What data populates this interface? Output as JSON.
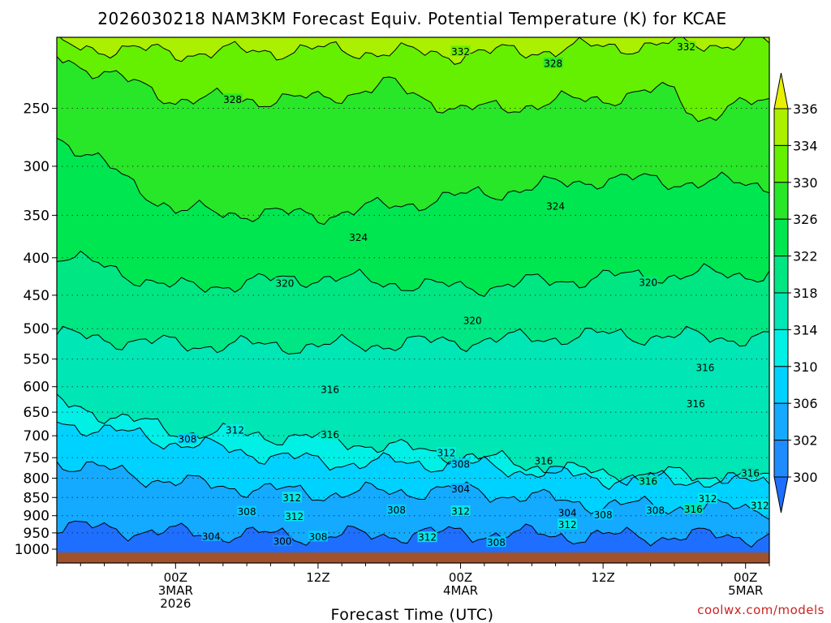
{
  "chart_data": {
    "type": "heatmap",
    "title": "2026030218 NAM3KM Forecast Equiv. Potential Temperature (K) for KCAE",
    "xlabel": "Forecast Time (UTC)",
    "ylabel": "",
    "credit": "coolwx.com/models",
    "x_range_hours_from_00Z_3MAR": [
      -5,
      25
    ],
    "x_ticks": [
      {
        "hour": 0,
        "lines": [
          "00Z",
          "3MAR",
          "2026"
        ]
      },
      {
        "hour": 6,
        "lines": [
          "12Z"
        ]
      },
      {
        "hour": 12,
        "lines": [
          "00Z",
          "4MAR"
        ]
      },
      {
        "hour": 18,
        "lines": [
          "12Z"
        ]
      },
      {
        "hour": 24,
        "lines": [
          "00Z",
          "5MAR"
        ]
      }
    ],
    "y_axis": {
      "scale": "log",
      "units": "hPa",
      "range": [
        1000,
        200
      ],
      "inverted": true
    },
    "y_ticks": [
      250,
      300,
      350,
      400,
      450,
      500,
      550,
      600,
      650,
      700,
      750,
      800,
      850,
      900,
      950,
      1000
    ],
    "colorbar": {
      "ticks": [
        300,
        302,
        306,
        310,
        314,
        318,
        322,
        326,
        330,
        334,
        336
      ],
      "bins": [
        {
          "min": 298,
          "max": 300,
          "color": "#1e6fff"
        },
        {
          "min": 300,
          "max": 302,
          "color": "#1e8cff"
        },
        {
          "min": 302,
          "max": 306,
          "color": "#14aaff"
        },
        {
          "min": 306,
          "max": 310,
          "color": "#00d2ff"
        },
        {
          "min": 310,
          "max": 314,
          "color": "#00f0e6"
        },
        {
          "min": 314,
          "max": 318,
          "color": "#00e6b4"
        },
        {
          "min": 318,
          "max": 322,
          "color": "#00e682"
        },
        {
          "min": 322,
          "max": 326,
          "color": "#00e650"
        },
        {
          "min": 326,
          "max": 330,
          "color": "#28e628"
        },
        {
          "min": 330,
          "max": 334,
          "color": "#64f000"
        },
        {
          "min": 334,
          "max": 336,
          "color": "#aaf000"
        },
        {
          "min": 336,
          "max": 338,
          "color": "#e6f000"
        }
      ]
    },
    "contour_interval_K": 4,
    "contours": [
      {
        "value": 332,
        "levels": [
          [
            -5,
            205
          ],
          [
            0,
            210
          ],
          [
            6,
            208
          ],
          [
            12,
            211
          ],
          [
            18,
            206
          ],
          [
            25,
            203
          ]
        ]
      },
      {
        "value": 328,
        "levels": [
          [
            -5,
            212
          ],
          [
            0,
            243
          ],
          [
            6,
            243
          ],
          [
            9,
            232
          ],
          [
            12,
            252
          ],
          [
            18,
            242
          ],
          [
            21,
            236
          ],
          [
            22,
            258
          ],
          [
            25,
            243
          ]
        ]
      },
      {
        "value": 324,
        "levels": [
          [
            -5,
            272
          ],
          [
            0,
            345
          ],
          [
            6,
            350
          ],
          [
            12,
            330
          ],
          [
            18,
            312
          ],
          [
            25,
            318
          ]
        ]
      },
      {
        "value": 320,
        "levels": [
          [
            -5,
            395
          ],
          [
            0,
            440
          ],
          [
            6,
            425
          ],
          [
            12,
            440
          ],
          [
            18,
            425
          ],
          [
            25,
            420
          ]
        ]
      },
      {
        "value": 316,
        "levels": [
          [
            -5,
            510
          ],
          [
            0,
            525
          ],
          [
            6,
            528
          ],
          [
            12,
            520
          ],
          [
            18,
            510
          ],
          [
            25,
            515
          ]
        ]
      },
      {
        "value": 312,
        "levels": [
          [
            -5,
            630
          ],
          [
            0,
            690
          ],
          [
            6,
            705
          ],
          [
            12,
            745
          ],
          [
            18,
            790
          ],
          [
            25,
            795
          ]
        ]
      },
      {
        "value": 308,
        "levels": [
          [
            -5,
            670
          ],
          [
            0,
            715
          ],
          [
            6,
            760
          ],
          [
            12,
            765
          ],
          [
            18,
            800
          ],
          [
            25,
            810
          ]
        ]
      },
      {
        "value": 304,
        "levels": [
          [
            -5,
            760
          ],
          [
            0,
            810
          ],
          [
            6,
            840
          ],
          [
            12,
            830
          ],
          [
            18,
            870
          ],
          [
            25,
            880
          ]
        ]
      },
      {
        "value": 300,
        "levels": [
          [
            -5,
            930
          ],
          [
            0,
            950
          ],
          [
            6,
            960
          ],
          [
            12,
            950
          ],
          [
            18,
            960
          ],
          [
            25,
            960
          ]
        ]
      }
    ],
    "contour_labels": [
      {
        "value": 332,
        "hour": 12.0,
        "level": 209
      },
      {
        "value": 332,
        "hour": 21.5,
        "level": 206
      },
      {
        "value": 328,
        "hour": 15.9,
        "level": 217
      },
      {
        "value": 328,
        "hour": 2.4,
        "level": 243
      },
      {
        "value": 324,
        "hour": 7.7,
        "level": 375
      },
      {
        "value": 324,
        "hour": 16.0,
        "level": 340
      },
      {
        "value": 320,
        "hour": 4.6,
        "level": 433
      },
      {
        "value": 320,
        "hour": 19.9,
        "level": 432
      },
      {
        "value": 320,
        "hour": 12.5,
        "level": 487
      },
      {
        "value": 316,
        "hour": 6.5,
        "level": 605
      },
      {
        "value": 316,
        "hour": 22.3,
        "level": 565
      },
      {
        "value": 316,
        "hour": 21.9,
        "level": 633
      },
      {
        "value": 316,
        "hour": 6.5,
        "level": 697
      },
      {
        "value": 316,
        "hour": 15.5,
        "level": 757
      },
      {
        "value": 316,
        "hour": 19.9,
        "level": 807
      },
      {
        "value": 316,
        "hour": 24.2,
        "level": 787
      },
      {
        "value": 316,
        "hour": 21.8,
        "level": 881
      },
      {
        "value": 312,
        "hour": 2.5,
        "level": 687
      },
      {
        "value": 312,
        "hour": 11.4,
        "level": 738
      },
      {
        "value": 312,
        "hour": 4.9,
        "level": 850
      },
      {
        "value": 312,
        "hour": 5.0,
        "level": 902
      },
      {
        "value": 312,
        "hour": 12.0,
        "level": 887
      },
      {
        "value": 312,
        "hour": 22.4,
        "level": 853
      },
      {
        "value": 312,
        "hour": 24.6,
        "level": 871
      },
      {
        "value": 312,
        "hour": 16.5,
        "level": 925
      },
      {
        "value": 312,
        "hour": 10.6,
        "level": 963
      },
      {
        "value": 308,
        "hour": 0.5,
        "level": 707
      },
      {
        "value": 308,
        "hour": 12.0,
        "level": 765
      },
      {
        "value": 308,
        "hour": 3.0,
        "level": 888
      },
      {
        "value": 308,
        "hour": 9.3,
        "level": 884
      },
      {
        "value": 308,
        "hour": 6.0,
        "level": 961
      },
      {
        "value": 308,
        "hour": 20.2,
        "level": 885
      },
      {
        "value": 308,
        "hour": 18.0,
        "level": 897
      },
      {
        "value": 308,
        "hour": 13.5,
        "level": 978
      },
      {
        "value": 304,
        "hour": 12.0,
        "level": 827
      },
      {
        "value": 304,
        "hour": 16.5,
        "level": 891
      },
      {
        "value": 304,
        "hour": 1.5,
        "level": 960
      },
      {
        "value": 300,
        "hour": 4.5,
        "level": 975
      }
    ]
  }
}
